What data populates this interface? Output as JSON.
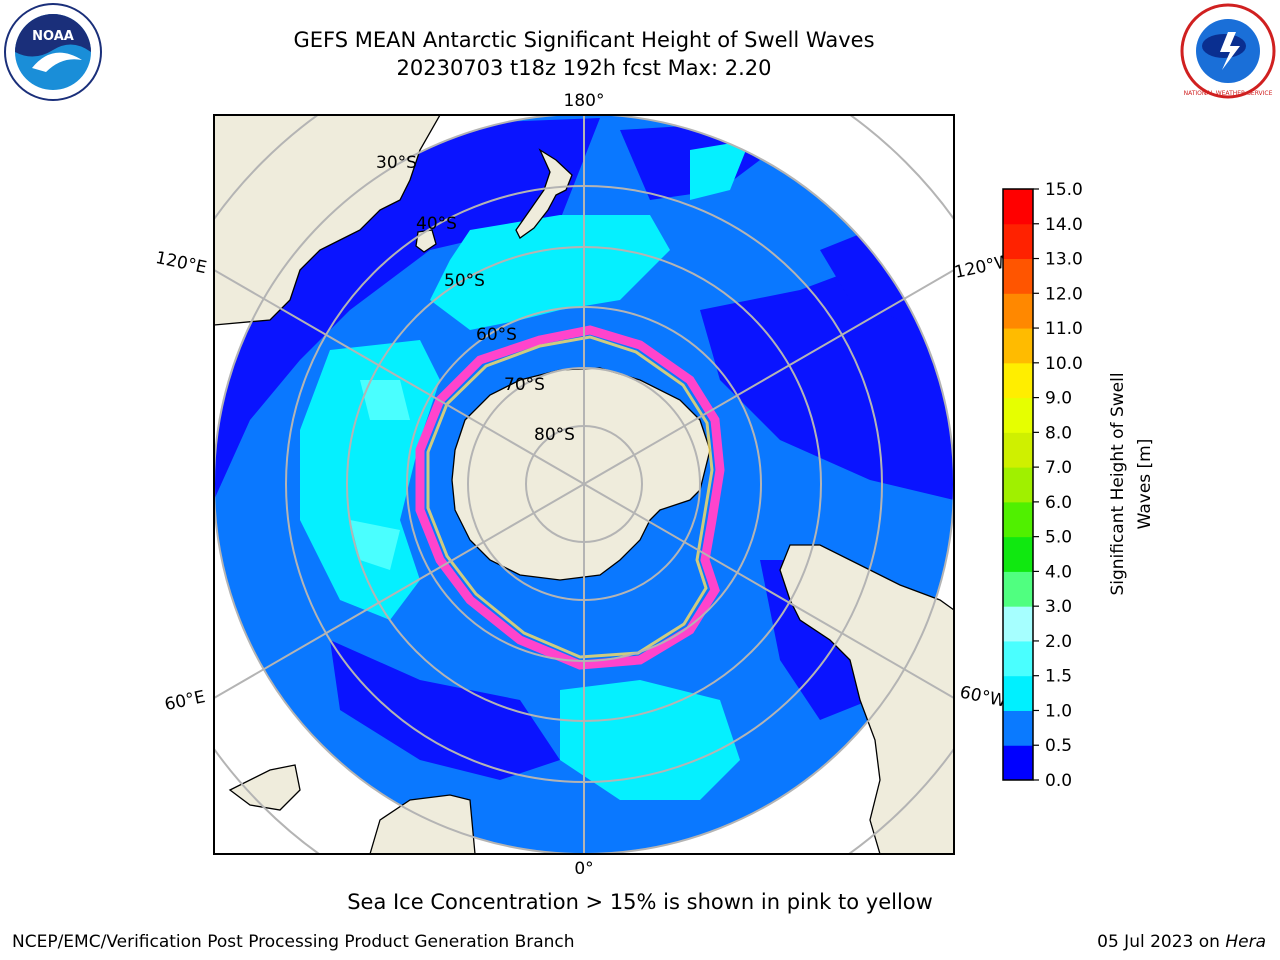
{
  "header": {
    "title_line1": "GEFS MEAN Antarctic Significant Height of Swell Waves",
    "title_line2": "20230703 t18z 192h fcst   Max: 2.20"
  },
  "logos": {
    "left": "noaa-logo",
    "left_text": "NOAA",
    "right": "national-weather-service-logo",
    "right_text": "NATIONAL WEATHER SERVICE"
  },
  "map": {
    "projection": "south-polar-stereographic",
    "lon_labels": {
      "top": "180°",
      "bottom": "0°",
      "left_upper": "120°E",
      "left_lower": "60°E",
      "right_upper": "120°W",
      "right_lower": "60°W"
    },
    "lat_labels": [
      "30°S",
      "40°S",
      "50°S",
      "60°S",
      "70°S",
      "80°S"
    ],
    "colors": {
      "land": "#efecdc",
      "ice_edge": "#ff44cc",
      "grid": "#b4b4b4",
      "ocean_low": "#0a14ff",
      "ocean_mid": "#0a78ff",
      "ocean_high": "#05f0ff"
    }
  },
  "colorbar": {
    "label_line1": "Significant Height of Swell",
    "label_line2": "Waves [m]",
    "ticks": [
      "0.0",
      "0.5",
      "1.0",
      "1.5",
      "2.0",
      "3.0",
      "4.0",
      "5.0",
      "6.0",
      "7.0",
      "8.0",
      "9.0",
      "10.0",
      "11.0",
      "12.0",
      "13.0",
      "14.0",
      "15.0"
    ],
    "colors": [
      "#0000ff",
      "#0a7aff",
      "#00f0ff",
      "#4affff",
      "#a6ffff",
      "#50ff80",
      "#10e810",
      "#50f000",
      "#a0f000",
      "#cff000",
      "#e6ff00",
      "#ffee00",
      "#ffbb00",
      "#ff8800",
      "#ff5500",
      "#ff2200",
      "#ff0000"
    ]
  },
  "caption": "Sea Ice Concentration > 15% is shown in pink to yellow",
  "footer": {
    "left": "NCEP/EMC/Verification Post Processing Product Generation Branch",
    "right_date": "05 Jul 2023 on ",
    "right_host": "Hera"
  }
}
